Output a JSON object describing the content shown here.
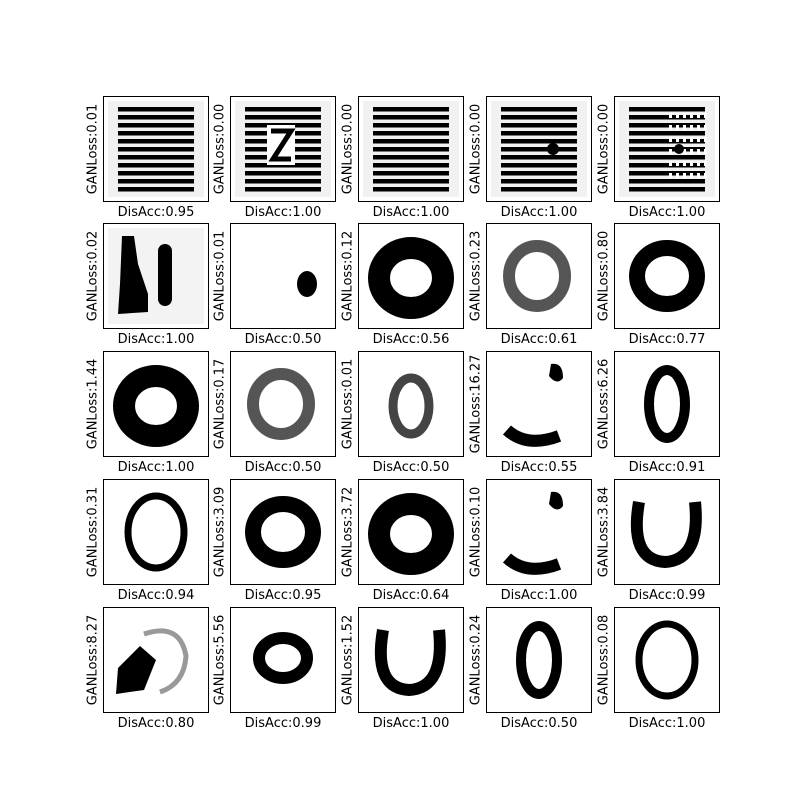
{
  "chart_data": {
    "type": "image-grid",
    "rows": 5,
    "cols": 5,
    "panels": [
      {
        "gan_loss": "GANLoss:0.01",
        "dis_acc": "DisAcc:0.95",
        "shape": "stripes"
      },
      {
        "gan_loss": "GANLoss:0.00",
        "dis_acc": "DisAcc:1.00",
        "shape": "stripes-z"
      },
      {
        "gan_loss": "GANLoss:0.00",
        "dis_acc": "DisAcc:1.00",
        "shape": "stripes"
      },
      {
        "gan_loss": "GANLoss:0.00",
        "dis_acc": "DisAcc:1.00",
        "shape": "stripes-dot"
      },
      {
        "gan_loss": "GANLoss:0.00",
        "dis_acc": "DisAcc:1.00",
        "shape": "stripes-dotted"
      },
      {
        "gan_loss": "GANLoss:0.02",
        "dis_acc": "DisAcc:1.00",
        "shape": "two-blobs"
      },
      {
        "gan_loss": "GANLoss:0.01",
        "dis_acc": "DisAcc:0.50",
        "shape": "small-blob"
      },
      {
        "gan_loss": "GANLoss:0.12",
        "dis_acc": "DisAcc:0.56",
        "shape": "thick-ring"
      },
      {
        "gan_loss": "GANLoss:0.23",
        "dis_acc": "DisAcc:0.61",
        "shape": "faint-ring"
      },
      {
        "gan_loss": "GANLoss:0.80",
        "dis_acc": "DisAcc:0.77",
        "shape": "ring"
      },
      {
        "gan_loss": "GANLoss:1.44",
        "dis_acc": "DisAcc:1.00",
        "shape": "thick-ring"
      },
      {
        "gan_loss": "GANLoss:0.17",
        "dis_acc": "DisAcc:0.50",
        "shape": "faint-ring"
      },
      {
        "gan_loss": "GANLoss:0.01",
        "dis_acc": "DisAcc:0.50",
        "shape": "faint-ring-small"
      },
      {
        "gan_loss": "GANLoss:16.27",
        "dis_acc": "DisAcc:0.55",
        "shape": "arcs"
      },
      {
        "gan_loss": "GANLoss:6.26",
        "dis_acc": "DisAcc:0.91",
        "shape": "tall-ring"
      },
      {
        "gan_loss": "GANLoss:0.31",
        "dis_acc": "DisAcc:0.94",
        "shape": "thin-ring"
      },
      {
        "gan_loss": "GANLoss:3.09",
        "dis_acc": "DisAcc:0.95",
        "shape": "ring"
      },
      {
        "gan_loss": "GANLoss:3.72",
        "dis_acc": "DisAcc:0.64",
        "shape": "thick-ring"
      },
      {
        "gan_loss": "GANLoss:0.10",
        "dis_acc": "DisAcc:1.00",
        "shape": "arcs"
      },
      {
        "gan_loss": "GANLoss:3.84",
        "dis_acc": "DisAcc:0.99",
        "shape": "u-shape"
      },
      {
        "gan_loss": "GANLoss:8.27",
        "dis_acc": "DisAcc:0.80",
        "shape": "blob-arc"
      },
      {
        "gan_loss": "GANLoss:5.56",
        "dis_acc": "DisAcc:0.99",
        "shape": "ring-small"
      },
      {
        "gan_loss": "GANLoss:1.52",
        "dis_acc": "DisAcc:1.00",
        "shape": "u-shape"
      },
      {
        "gan_loss": "GANLoss:0.24",
        "dis_acc": "DisAcc:0.50",
        "shape": "tall-ring"
      },
      {
        "gan_loss": "GANLoss:0.08",
        "dis_acc": "DisAcc:1.00",
        "shape": "thin-ring"
      }
    ]
  }
}
